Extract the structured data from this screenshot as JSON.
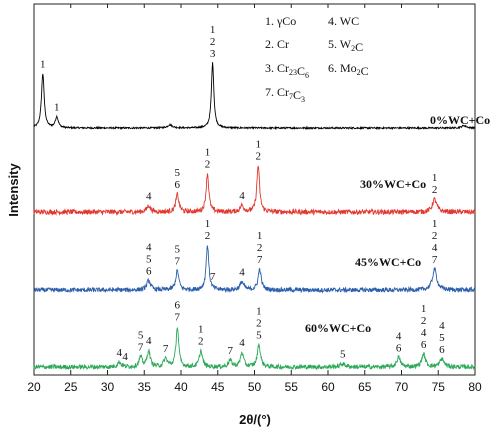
{
  "chart_data": {
    "type": "line",
    "xlabel": "2θ/(°)",
    "ylabel": "Intensity",
    "xlim": [
      20,
      80
    ],
    "x_ticks": [
      "20",
      "25",
      "30",
      "35",
      "40",
      "45",
      "50",
      "55",
      "60",
      "65",
      "70",
      "75",
      "80"
    ],
    "y_ticks_shown": false,
    "grid": false,
    "legend_position": "top-center",
    "legend": [
      {
        "key": "1",
        "label": "γCo"
      },
      {
        "key": "2",
        "label": "Cr"
      },
      {
        "key": "3",
        "label": "Cr23C6"
      },
      {
        "key": "4",
        "label": "WC"
      },
      {
        "key": "5",
        "label": "W2C"
      },
      {
        "key": "6",
        "label": "Mo2C"
      },
      {
        "key": "7",
        "label": "Cr7C3"
      }
    ],
    "series": [
      {
        "name": "0%WC+Co",
        "color": "#000000",
        "baseline": 10,
        "noise": 0.5,
        "peaks": [
          {
            "x": 21.2,
            "height": 35,
            "width": 0.22
          },
          {
            "x": 23.1,
            "height": 7,
            "width": 0.25
          },
          {
            "x": 38.5,
            "height": 2,
            "width": 0.4
          },
          {
            "x": 44.3,
            "height": 42,
            "width": 0.2
          },
          {
            "x": 78.5,
            "height": 1.5,
            "width": 0.4
          }
        ],
        "peak_labels": [
          {
            "x": 21.2,
            "text": [
              "1"
            ]
          },
          {
            "x": 23.1,
            "text": [
              "1"
            ]
          },
          {
            "x": 44.3,
            "text": [
              "1",
              "2",
              "3"
            ]
          }
        ]
      },
      {
        "name": "30%WC+Co",
        "color": "#e2372f",
        "baseline": 10,
        "noise": 1.5,
        "peaks": [
          {
            "x": 35.6,
            "height": 4,
            "width": 0.3
          },
          {
            "x": 39.5,
            "height": 11,
            "width": 0.25
          },
          {
            "x": 43.6,
            "height": 24,
            "width": 0.22
          },
          {
            "x": 48.3,
            "height": 4,
            "width": 0.3
          },
          {
            "x": 50.5,
            "height": 29,
            "width": 0.22
          },
          {
            "x": 74.5,
            "height": 8,
            "width": 0.35
          }
        ],
        "peak_labels": [
          {
            "x": 35.6,
            "text": [
              "4"
            ]
          },
          {
            "x": 39.5,
            "text": [
              "5",
              "6"
            ]
          },
          {
            "x": 43.6,
            "text": [
              "1",
              "2"
            ]
          },
          {
            "x": 48.3,
            "text": [
              "4"
            ]
          },
          {
            "x": 50.5,
            "text": [
              "1",
              "2"
            ]
          },
          {
            "x": 74.5,
            "text": [
              "1",
              "2"
            ]
          }
        ]
      },
      {
        "name": "45%WC+Co",
        "color": "#2c5fab",
        "baseline": 10,
        "noise": 1.4,
        "peaks": [
          {
            "x": 35.6,
            "height": 6,
            "width": 0.3
          },
          {
            "x": 39.5,
            "height": 12,
            "width": 0.25
          },
          {
            "x": 43.6,
            "height": 28,
            "width": 0.22
          },
          {
            "x": 48.3,
            "height": 5,
            "width": 0.3
          },
          {
            "x": 50.7,
            "height": 13,
            "width": 0.25
          },
          {
            "x": 74.5,
            "height": 13,
            "width": 0.35
          }
        ],
        "peak_labels": [
          {
            "x": 35.6,
            "text": [
              "4",
              "5",
              "6"
            ]
          },
          {
            "x": 39.5,
            "text": [
              "5",
              "7"
            ]
          },
          {
            "x": 43.6,
            "text": [
              "1",
              "2"
            ]
          },
          {
            "x": 44.3,
            "text": [
              "7"
            ]
          },
          {
            "x": 48.3,
            "text": [
              "4"
            ]
          },
          {
            "x": 50.7,
            "text": [
              "1",
              "2",
              "7"
            ]
          },
          {
            "x": 74.5,
            "text": [
              "1",
              "2",
              "4",
              "7"
            ]
          }
        ]
      },
      {
        "name": "60%WC+Co",
        "color": "#2ea85a",
        "baseline": 10,
        "noise": 1.4,
        "peaks": [
          {
            "x": 31.6,
            "height": 3,
            "width": 0.3
          },
          {
            "x": 34.5,
            "height": 6,
            "width": 0.25
          },
          {
            "x": 35.6,
            "height": 10,
            "width": 0.25
          },
          {
            "x": 37.9,
            "height": 5,
            "width": 0.3
          },
          {
            "x": 39.5,
            "height": 25,
            "width": 0.22
          },
          {
            "x": 42.7,
            "height": 10,
            "width": 0.25
          },
          {
            "x": 46.7,
            "height": 4,
            "width": 0.3
          },
          {
            "x": 48.3,
            "height": 9,
            "width": 0.25
          },
          {
            "x": 50.6,
            "height": 14,
            "width": 0.25
          },
          {
            "x": 62.0,
            "height": 2,
            "width": 0.4
          },
          {
            "x": 69.6,
            "height": 6,
            "width": 0.3
          },
          {
            "x": 73.0,
            "height": 8,
            "width": 0.3
          },
          {
            "x": 75.5,
            "height": 5,
            "width": 0.35
          }
        ],
        "peak_labels": [
          {
            "x": 31.6,
            "text": [
              "4"
            ]
          },
          {
            "x": 32.4,
            "text": [
              "4"
            ]
          },
          {
            "x": 34.5,
            "text": [
              "5",
              "7"
            ]
          },
          {
            "x": 35.6,
            "text": [
              "4"
            ]
          },
          {
            "x": 37.9,
            "text": [
              "7"
            ]
          },
          {
            "x": 39.5,
            "text": [
              "6",
              "7"
            ]
          },
          {
            "x": 42.7,
            "text": [
              "1",
              "2"
            ]
          },
          {
            "x": 46.7,
            "text": [
              "7"
            ]
          },
          {
            "x": 48.3,
            "text": [
              "4"
            ]
          },
          {
            "x": 50.6,
            "text": [
              "1",
              "2",
              "5"
            ]
          },
          {
            "x": 62.0,
            "text": [
              "5"
            ]
          },
          {
            "x": 69.6,
            "text": [
              "4",
              "6"
            ]
          },
          {
            "x": 73.0,
            "text": [
              "1",
              "2",
              "4",
              "6"
            ]
          },
          {
            "x": 75.5,
            "text": [
              "4",
              "5",
              "6"
            ]
          }
        ]
      }
    ]
  }
}
